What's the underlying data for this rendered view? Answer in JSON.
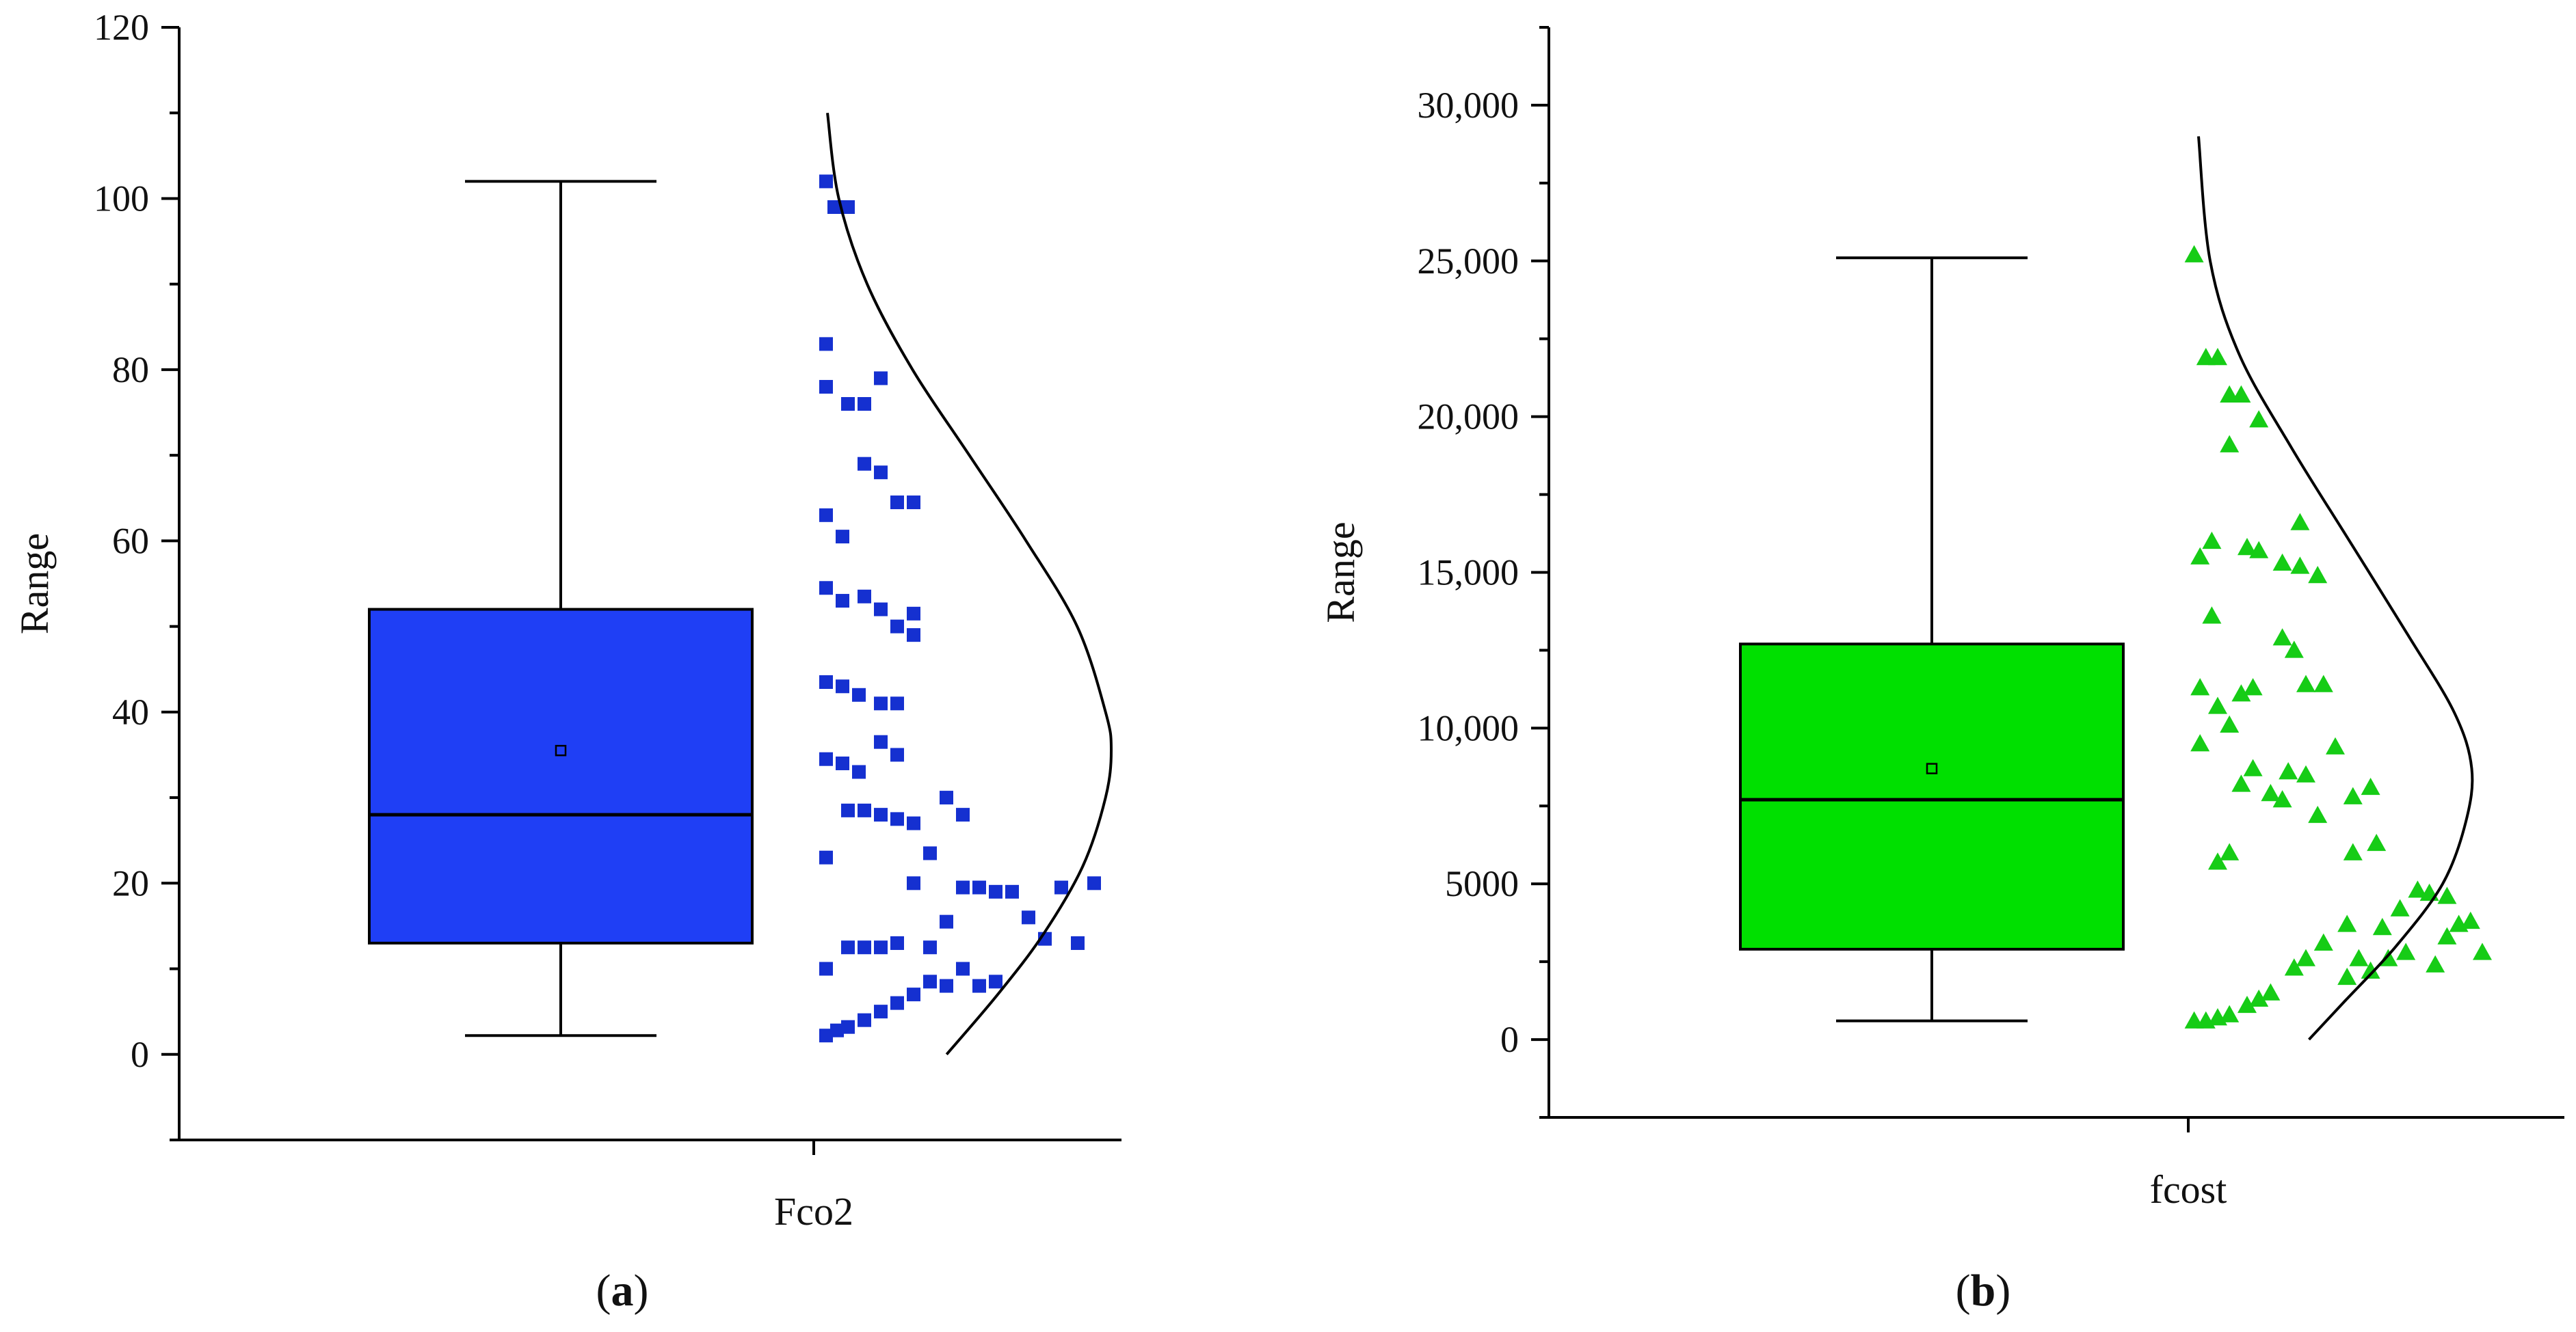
{
  "chart_data": [
    {
      "type": "box",
      "panel_label": "(a)",
      "panel_letter": "a",
      "category": "Fco2",
      "ylabel": "Range",
      "ylim": [
        -10,
        120
      ],
      "yticks": [
        0,
        20,
        40,
        60,
        80,
        100,
        120
      ],
      "ytick_labels": [
        "0",
        "20",
        "40",
        "60",
        "80",
        "100",
        "120"
      ],
      "box": {
        "min": 2.2,
        "q1": 13,
        "median": 28,
        "q3": 52,
        "max": 102,
        "mean": 35.5
      },
      "box_color": "#1f3ff5",
      "marker": "square",
      "marker_color": "#1530d0",
      "points": [
        {
          "x": 0.02,
          "y": 102
        },
        {
          "x": 0.05,
          "y": 99
        },
        {
          "x": 0.1,
          "y": 99
        },
        {
          "x": 0.02,
          "y": 83
        },
        {
          "x": 0.02,
          "y": 78
        },
        {
          "x": 0.1,
          "y": 76
        },
        {
          "x": 0.16,
          "y": 76
        },
        {
          "x": 0.22,
          "y": 79
        },
        {
          "x": 0.16,
          "y": 69
        },
        {
          "x": 0.22,
          "y": 68
        },
        {
          "x": 0.28,
          "y": 64.5
        },
        {
          "x": 0.34,
          "y": 64.5
        },
        {
          "x": 0.02,
          "y": 63
        },
        {
          "x": 0.08,
          "y": 60.5
        },
        {
          "x": 0.02,
          "y": 54.5
        },
        {
          "x": 0.08,
          "y": 53
        },
        {
          "x": 0.16,
          "y": 53.5
        },
        {
          "x": 0.22,
          "y": 52
        },
        {
          "x": 0.28,
          "y": 50
        },
        {
          "x": 0.34,
          "y": 49
        },
        {
          "x": 0.34,
          "y": 51.5
        },
        {
          "x": 0.02,
          "y": 43.5
        },
        {
          "x": 0.08,
          "y": 43
        },
        {
          "x": 0.14,
          "y": 42
        },
        {
          "x": 0.22,
          "y": 41
        },
        {
          "x": 0.28,
          "y": 41
        },
        {
          "x": 0.02,
          "y": 34.5
        },
        {
          "x": 0.08,
          "y": 34
        },
        {
          "x": 0.14,
          "y": 33
        },
        {
          "x": 0.22,
          "y": 36.5
        },
        {
          "x": 0.28,
          "y": 35
        },
        {
          "x": 0.1,
          "y": 28.5
        },
        {
          "x": 0.16,
          "y": 28.5
        },
        {
          "x": 0.22,
          "y": 28
        },
        {
          "x": 0.28,
          "y": 27.5
        },
        {
          "x": 0.34,
          "y": 27
        },
        {
          "x": 0.46,
          "y": 30
        },
        {
          "x": 0.52,
          "y": 28
        },
        {
          "x": 0.02,
          "y": 23
        },
        {
          "x": 0.4,
          "y": 23.5
        },
        {
          "x": 0.34,
          "y": 20
        },
        {
          "x": 0.52,
          "y": 19.5
        },
        {
          "x": 0.58,
          "y": 19.5
        },
        {
          "x": 0.64,
          "y": 19
        },
        {
          "x": 0.7,
          "y": 19
        },
        {
          "x": 0.88,
          "y": 19.5
        },
        {
          "x": 1.0,
          "y": 20
        },
        {
          "x": 0.76,
          "y": 16
        },
        {
          "x": 0.46,
          "y": 15.5
        },
        {
          "x": 0.82,
          "y": 13.5
        },
        {
          "x": 0.94,
          "y": 13
        },
        {
          "x": 0.1,
          "y": 12.5
        },
        {
          "x": 0.16,
          "y": 12.5
        },
        {
          "x": 0.22,
          "y": 12.5
        },
        {
          "x": 0.28,
          "y": 13
        },
        {
          "x": 0.4,
          "y": 12.5
        },
        {
          "x": 0.02,
          "y": 10
        },
        {
          "x": 0.52,
          "y": 10
        },
        {
          "x": 0.46,
          "y": 8
        },
        {
          "x": 0.4,
          "y": 8.5
        },
        {
          "x": 0.58,
          "y": 8
        },
        {
          "x": 0.64,
          "y": 8.5
        },
        {
          "x": 0.34,
          "y": 7
        },
        {
          "x": 0.28,
          "y": 6
        },
        {
          "x": 0.22,
          "y": 5
        },
        {
          "x": 0.16,
          "y": 4
        },
        {
          "x": 0.1,
          "y": 3.2
        },
        {
          "x": 0.06,
          "y": 2.8
        },
        {
          "x": 0.02,
          "y": 2.2
        }
      ],
      "density_curve": [
        [
          0.0,
          110
        ],
        [
          0.04,
          100
        ],
        [
          0.14,
          90
        ],
        [
          0.3,
          80
        ],
        [
          0.5,
          70
        ],
        [
          0.7,
          60
        ],
        [
          0.88,
          50
        ],
        [
          0.98,
          40
        ],
        [
          1.0,
          35.5
        ],
        [
          0.98,
          30
        ],
        [
          0.9,
          22
        ],
        [
          0.76,
          14
        ],
        [
          0.6,
          7
        ],
        [
          0.42,
          0
        ]
      ],
      "curve_color": "#000000"
    },
    {
      "type": "box",
      "panel_label": "(b)",
      "panel_letter": "b",
      "category": "fcost",
      "ylabel": "Range",
      "ylim": [
        -2500,
        32500
      ],
      "yticks": [
        0,
        5000,
        10000,
        15000,
        20000,
        25000,
        30000
      ],
      "ytick_labels": [
        "0",
        "5000",
        "10,000",
        "15,000",
        "20,000",
        "25,000",
        "30,000"
      ],
      "box": {
        "min": 600,
        "q1": 2900,
        "median": 7700,
        "q3": 12700,
        "max": 25100,
        "mean": 8700
      },
      "box_color": "#00e000",
      "marker": "triangle",
      "marker_color": "#16cc16",
      "points": [
        {
          "x": 0.02,
          "y": 25200
        },
        {
          "x": 0.06,
          "y": 21900
        },
        {
          "x": 0.1,
          "y": 21900
        },
        {
          "x": 0.14,
          "y": 20700
        },
        {
          "x": 0.18,
          "y": 20700
        },
        {
          "x": 0.24,
          "y": 19900
        },
        {
          "x": 0.14,
          "y": 19100
        },
        {
          "x": 0.38,
          "y": 16600
        },
        {
          "x": 0.08,
          "y": 16000
        },
        {
          "x": 0.04,
          "y": 15500
        },
        {
          "x": 0.2,
          "y": 15800
        },
        {
          "x": 0.24,
          "y": 15700
        },
        {
          "x": 0.32,
          "y": 15300
        },
        {
          "x": 0.38,
          "y": 15200
        },
        {
          "x": 0.44,
          "y": 14900
        },
        {
          "x": 0.08,
          "y": 13600
        },
        {
          "x": 0.32,
          "y": 12900
        },
        {
          "x": 0.36,
          "y": 12500
        },
        {
          "x": 0.04,
          "y": 11300
        },
        {
          "x": 0.18,
          "y": 11100
        },
        {
          "x": 0.22,
          "y": 11300
        },
        {
          "x": 0.4,
          "y": 11400
        },
        {
          "x": 0.46,
          "y": 11400
        },
        {
          "x": 0.1,
          "y": 10700
        },
        {
          "x": 0.14,
          "y": 10100
        },
        {
          "x": 0.04,
          "y": 9500
        },
        {
          "x": 0.5,
          "y": 9400
        },
        {
          "x": 0.22,
          "y": 8700
        },
        {
          "x": 0.34,
          "y": 8600
        },
        {
          "x": 0.4,
          "y": 8500
        },
        {
          "x": 0.18,
          "y": 8200
        },
        {
          "x": 0.28,
          "y": 7900
        },
        {
          "x": 0.32,
          "y": 7700
        },
        {
          "x": 0.62,
          "y": 8100
        },
        {
          "x": 0.56,
          "y": 7800
        },
        {
          "x": 0.44,
          "y": 7200
        },
        {
          "x": 0.64,
          "y": 6300
        },
        {
          "x": 0.56,
          "y": 6000
        },
        {
          "x": 0.14,
          "y": 6000
        },
        {
          "x": 0.1,
          "y": 5700
        },
        {
          "x": 0.78,
          "y": 4800
        },
        {
          "x": 0.82,
          "y": 4700
        },
        {
          "x": 0.88,
          "y": 4600
        },
        {
          "x": 0.72,
          "y": 4200
        },
        {
          "x": 0.54,
          "y": 3700
        },
        {
          "x": 0.46,
          "y": 3100
        },
        {
          "x": 0.66,
          "y": 3600
        },
        {
          "x": 0.92,
          "y": 3700
        },
        {
          "x": 0.96,
          "y": 3800
        },
        {
          "x": 0.88,
          "y": 3300
        },
        {
          "x": 0.74,
          "y": 2800
        },
        {
          "x": 0.68,
          "y": 2600
        },
        {
          "x": 1.0,
          "y": 2800
        },
        {
          "x": 0.84,
          "y": 2400
        },
        {
          "x": 0.4,
          "y": 2600
        },
        {
          "x": 0.36,
          "y": 2300
        },
        {
          "x": 0.58,
          "y": 2600
        },
        {
          "x": 0.62,
          "y": 2200
        },
        {
          "x": 0.54,
          "y": 2000
        },
        {
          "x": 0.28,
          "y": 1500
        },
        {
          "x": 0.24,
          "y": 1300
        },
        {
          "x": 0.2,
          "y": 1100
        },
        {
          "x": 0.02,
          "y": 600
        },
        {
          "x": 0.06,
          "y": 600
        },
        {
          "x": 0.1,
          "y": 700
        },
        {
          "x": 0.14,
          "y": 800
        }
      ],
      "density_curve": [
        [
          0.0,
          29000
        ],
        [
          0.04,
          25000
        ],
        [
          0.14,
          22000
        ],
        [
          0.32,
          19000
        ],
        [
          0.52,
          16000
        ],
        [
          0.72,
          13000
        ],
        [
          0.88,
          10500
        ],
        [
          0.94,
          8700
        ],
        [
          0.92,
          7000
        ],
        [
          0.84,
          5000
        ],
        [
          0.68,
          3000
        ],
        [
          0.5,
          1200
        ],
        [
          0.38,
          0
        ]
      ],
      "curve_color": "#000000"
    }
  ]
}
